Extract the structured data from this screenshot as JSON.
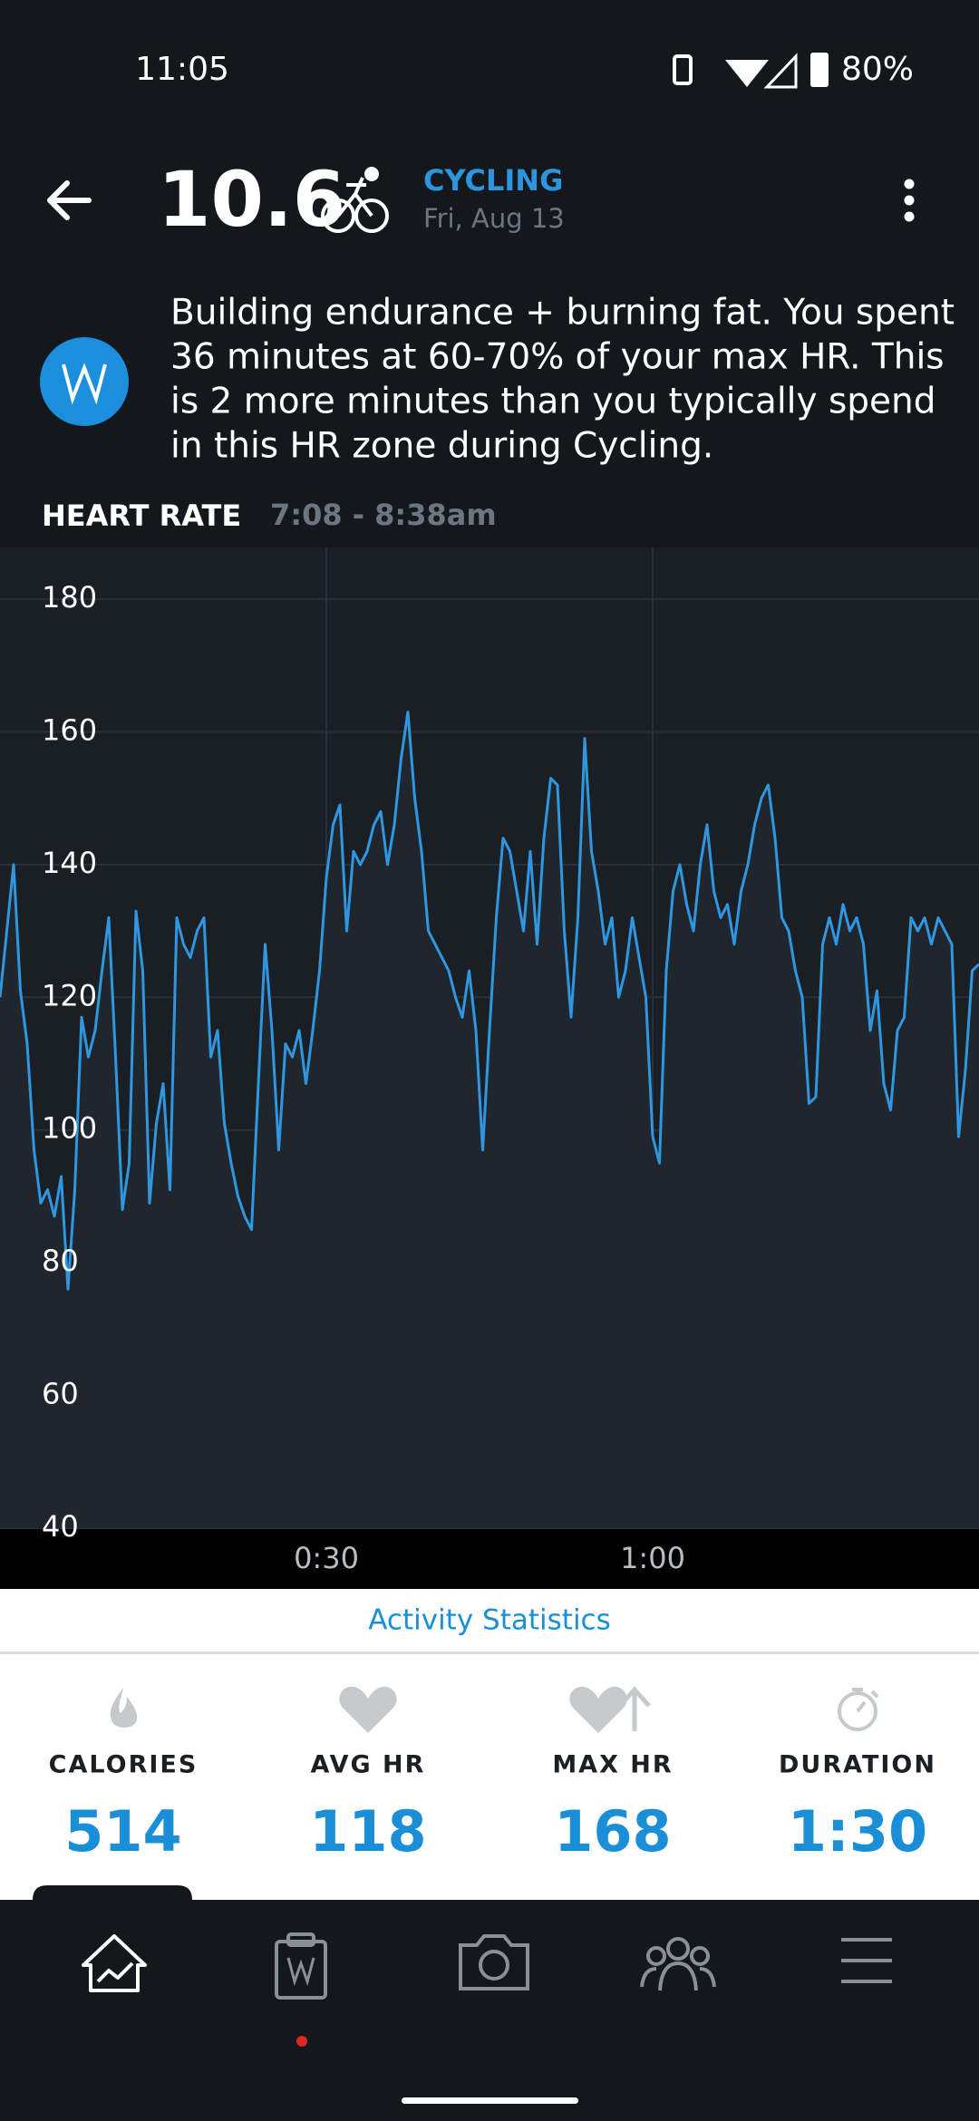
{
  "status_bar": {
    "time": "11:05",
    "battery": "80%"
  },
  "header": {
    "value": "10.6",
    "activity": "CYCLING",
    "date": "Fri, Aug 13"
  },
  "insight": {
    "lines": [
      "Building endurance + burning fat. You spent",
      "36 minutes at 60-70% of your max HR. This",
      "is 2 more minutes than you typically spend",
      "in this HR zone during Cycling."
    ]
  },
  "chart_data": {
    "type": "line",
    "title": "HEART RATE",
    "subtitle": "7:08 - 8:38am",
    "x": [
      0,
      0.625,
      1.25,
      1.875,
      2.5,
      3.125,
      3.75,
      4.375,
      5,
      5.625,
      6.25,
      6.875,
      7.5,
      8.125,
      8.75,
      9.375,
      10,
      10.625,
      11.25,
      11.875,
      12.5,
      13.125,
      13.75,
      14.375,
      15,
      15.625,
      16.25,
      16.875,
      17.5,
      18.125,
      18.75,
      19.375,
      20,
      20.625,
      21.25,
      21.875,
      22.5,
      23.125,
      23.75,
      24.375,
      25,
      25.625,
      26.25,
      26.875,
      27.5,
      28.125,
      28.75,
      29.375,
      30,
      30.625,
      31.25,
      31.875,
      32.5,
      33.125,
      33.75,
      34.375,
      35,
      35.625,
      36.25,
      36.875,
      37.5,
      38.125,
      38.75,
      39.375,
      40,
      40.625,
      41.25,
      41.875,
      42.5,
      43.125,
      43.75,
      44.375,
      45,
      45.625,
      46.25,
      46.875,
      47.5,
      48.125,
      48.75,
      49.375,
      50,
      50.625,
      51.25,
      51.875,
      52.5,
      53.125,
      53.75,
      54.375,
      55,
      55.625,
      56.25,
      56.875,
      57.5,
      58.125,
      58.75,
      59.375,
      60,
      60.625,
      61.25,
      61.875,
      62.5,
      63.125,
      63.75,
      64.375,
      65,
      65.625,
      66.25,
      66.875,
      67.5,
      68.125,
      68.75,
      69.375,
      70,
      70.625,
      71.25,
      71.875,
      72.5,
      73.125,
      73.75,
      74.375,
      75,
      75.625,
      76.25,
      76.875,
      77.5,
      78.125,
      78.75,
      79.375,
      80,
      80.625,
      81.25,
      81.875,
      82.5,
      83.125,
      83.75,
      84.375,
      85,
      85.625,
      86.25,
      86.875,
      87.5,
      88.125,
      88.75,
      89.375,
      90
    ],
    "series": [
      {
        "color": "#2f97e0",
        "values": [
          120,
          130,
          140,
          121,
          113,
          97,
          89,
          91,
          87,
          93,
          76,
          91,
          117,
          111,
          115,
          124,
          132,
          111,
          88,
          95,
          133,
          124,
          89,
          101,
          107,
          91,
          132,
          128,
          126,
          130,
          132,
          111,
          115,
          101,
          95,
          90,
          87,
          85,
          107,
          128,
          115,
          97,
          113,
          111,
          115,
          107,
          115,
          124,
          138,
          146,
          149,
          130,
          142,
          140,
          142,
          146,
          148,
          140,
          146,
          156,
          163,
          150,
          142,
          130,
          128,
          126,
          124,
          120,
          117,
          124,
          115,
          97,
          115,
          132,
          144,
          142,
          136,
          130,
          142,
          128,
          144,
          153,
          152,
          130,
          117,
          132,
          159,
          142,
          136,
          128,
          132,
          120,
          124,
          132,
          126,
          120,
          99,
          95,
          124,
          136,
          140,
          134,
          130,
          140,
          146,
          136,
          132,
          134,
          128,
          136,
          140,
          146,
          150,
          152,
          144,
          132,
          130,
          124,
          120,
          104,
          105,
          128,
          132,
          128,
          134,
          130,
          132,
          128,
          115,
          121,
          107,
          103,
          115,
          117,
          132,
          130,
          132,
          128,
          132,
          130,
          128,
          99,
          109,
          124,
          125
        ]
      }
    ],
    "xlim": [
      0,
      90
    ],
    "ylim": [
      40,
      180
    ],
    "xticks": [
      {
        "value": 30,
        "label": "0:30"
      },
      {
        "value": 60,
        "label": "1:00"
      }
    ],
    "yticks": [
      40,
      60,
      80,
      100,
      120,
      140,
      160,
      180
    ],
    "grid": true
  },
  "stats": {
    "title": "Activity Statistics",
    "items": [
      {
        "label": "CALORIES",
        "value": "514"
      },
      {
        "label": "AVG HR",
        "value": "118"
      },
      {
        "label": "MAX HR",
        "value": "168"
      },
      {
        "label": "DURATION",
        "value": "1:30"
      }
    ]
  }
}
